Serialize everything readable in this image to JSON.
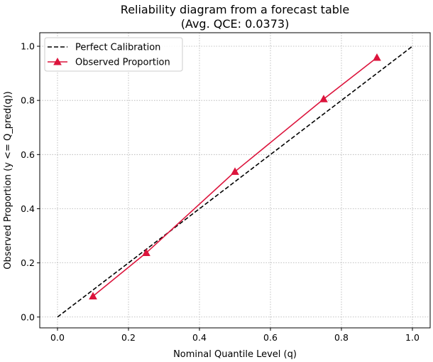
{
  "chart_data": {
    "type": "line",
    "title": "Reliability diagram from a forecast table",
    "subtitle": "(Avg. QCE: 0.0373)",
    "xlabel": "Nominal Quantile Level (q)",
    "ylabel": "Observed Proportion (y <= Q_pred(q))",
    "xlim": [
      -0.05,
      1.05
    ],
    "ylim": [
      -0.04,
      1.05
    ],
    "xticks": [
      0.0,
      0.2,
      0.4,
      0.6,
      0.8,
      1.0
    ],
    "yticks": [
      0.0,
      0.2,
      0.4,
      0.6,
      0.8,
      1.0
    ],
    "xtick_labels": [
      "0.0",
      "0.2",
      "0.4",
      "0.6",
      "0.8",
      "1.0"
    ],
    "ytick_labels": [
      "0.0",
      "0.2",
      "0.4",
      "0.6",
      "0.8",
      "1.0"
    ],
    "grid": true,
    "legend_position": "top-left",
    "series": [
      {
        "name": "Perfect Calibration",
        "style": "dashed",
        "color": "#000000",
        "x": [
          0.0,
          1.0
        ],
        "y": [
          0.0,
          1.0
        ]
      },
      {
        "name": "Observed Proportion",
        "style": "solid",
        "marker": "triangle",
        "color": "#dc143c",
        "x": [
          0.1,
          0.25,
          0.5,
          0.75,
          0.9
        ],
        "y": [
          0.077,
          0.237,
          0.537,
          0.805,
          0.958
        ]
      }
    ]
  }
}
